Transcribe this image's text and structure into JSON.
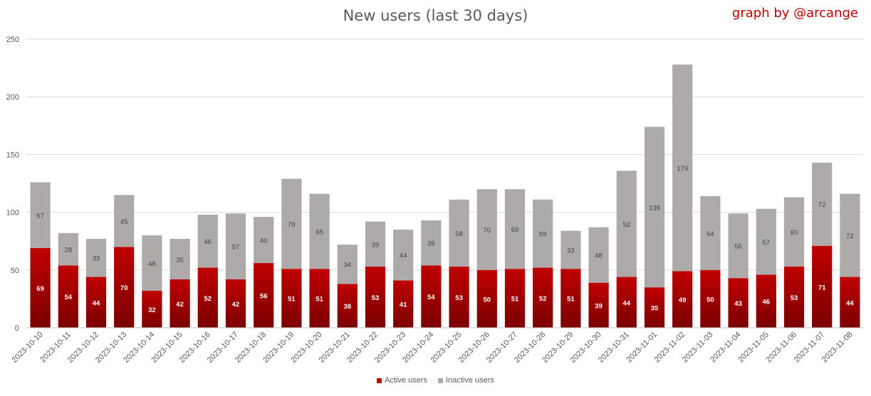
{
  "title": "New users (last 30 days)",
  "credit": "graph by @arcange",
  "colors": {
    "active": "#c00000",
    "active_dark": "#7a0000",
    "inactive": "#aeaaaa",
    "grid": "#d9d9d9",
    "text": "#595959"
  },
  "chart_data": {
    "type": "bar",
    "stacked": true,
    "title": "New users (last 30 days)",
    "categories": [
      "2023-10-10",
      "2023-10-11",
      "2023-10-12",
      "2023-10-13",
      "2023-10-14",
      "2023-10-15",
      "2023-10-16",
      "2023-10-17",
      "2023-10-18",
      "2023-10-19",
      "2023-10-20",
      "2023-10-21",
      "2023-10-22",
      "2023-10-23",
      "2023-10-24",
      "2023-10-25",
      "2023-10-26",
      "2023-10-27",
      "2023-10-28",
      "2023-10-29",
      "2023-10-30",
      "2023-10-31",
      "2023-11-01",
      "2023-11-02",
      "2023-11-03",
      "2023-11-04",
      "2023-11-05",
      "2023-11-06",
      "2023-11-07",
      "2023-11-08"
    ],
    "series": [
      {
        "name": "Active users",
        "values": [
          69,
          54,
          44,
          70,
          32,
          42,
          52,
          42,
          56,
          51,
          51,
          38,
          53,
          41,
          54,
          53,
          50,
          51,
          52,
          51,
          39,
          44,
          35,
          49,
          50,
          43,
          46,
          53,
          71,
          44
        ]
      },
      {
        "name": "Inactive users",
        "values": [
          57,
          28,
          33,
          45,
          48,
          35,
          46,
          57,
          40,
          78,
          65,
          34,
          39,
          44,
          39,
          58,
          70,
          69,
          59,
          33,
          48,
          92,
          139,
          179,
          64,
          56,
          57,
          60,
          72,
          72
        ]
      }
    ],
    "ylim": [
      0,
      250
    ],
    "yticks": [
      0,
      50,
      100,
      150,
      200,
      250
    ],
    "grid": true,
    "legend": "bottom"
  }
}
